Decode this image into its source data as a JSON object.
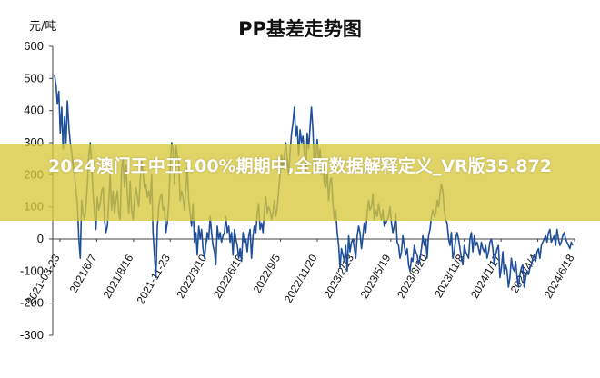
{
  "overlay": {
    "headline": "2024澳门王中王100%期期中,全面数据解释定义_VR版35.872"
  },
  "colors": {
    "line": "#1f4e9a",
    "banner": "#d8c83c",
    "axis": "#444444"
  },
  "chart_data": {
    "type": "line",
    "title": "PP基差走势图",
    "ylabel": "元/吨",
    "xlabel": "",
    "ylim": [
      -300,
      600
    ],
    "yticks": [
      600,
      500,
      400,
      300,
      200,
      100,
      0,
      -100,
      -200,
      -300
    ],
    "xticklabels": [
      "2021-03-23",
      "2021/6/7",
      "2021/8/16",
      "2021-11-23",
      "2022/3/10",
      "2022/6/10",
      "2022/9/5",
      "2022/11/20",
      "2023/2/13",
      "2023/5/19",
      "2023/8/20",
      "2023/11/8",
      "2024/1/17",
      "2024/4/4",
      "2024/6/18"
    ],
    "grid": false,
    "legend": "none",
    "series": [
      {
        "values": [
          510,
          480,
          420,
          460,
          330,
          410,
          280,
          380,
          300,
          430,
          350,
          300,
          270,
          230,
          200,
          150,
          110,
          0,
          -60,
          120,
          80,
          60,
          100,
          170,
          260,
          300,
          230,
          140,
          80,
          30,
          130,
          90,
          110,
          150,
          160,
          60,
          20,
          40,
          120,
          200,
          90,
          150,
          80,
          120,
          150,
          80,
          60,
          220,
          250,
          160,
          230,
          140,
          80,
          180,
          90,
          60,
          120,
          160,
          130,
          100,
          180,
          240,
          210,
          160,
          170,
          130,
          150,
          110,
          200,
          20,
          -50,
          -120,
          40,
          100,
          130,
          140,
          90,
          100,
          20,
          50,
          110,
          220,
          300,
          280,
          170,
          290,
          260,
          240,
          120,
          150,
          130,
          90,
          160,
          220,
          120,
          80,
          40,
          110,
          -10,
          20,
          -50,
          40,
          0,
          30,
          -30,
          -60,
          -20,
          20,
          0,
          70,
          20,
          -20,
          -40,
          -80,
          40,
          0,
          20,
          -10,
          10,
          20,
          70,
          20,
          40,
          -10,
          20,
          -50,
          30,
          0,
          -20,
          -60,
          -30,
          -70,
          20,
          -10,
          0,
          -40,
          10,
          30,
          -60,
          10,
          40,
          20,
          80,
          110,
          30,
          50,
          20,
          90,
          130,
          80,
          100,
          90,
          60,
          80,
          120,
          70,
          100,
          150,
          200,
          260,
          220,
          260,
          300,
          250,
          200,
          270,
          330,
          360,
          410,
          320,
          350,
          260,
          340,
          300,
          320,
          270,
          210,
          330,
          280,
          350,
          410,
          340,
          220,
          250,
          310,
          250,
          280,
          200,
          240,
          170,
          160,
          210,
          120,
          180,
          190,
          110,
          60,
          90,
          20,
          -20,
          -90,
          -30,
          -50,
          -70,
          -20,
          -100,
          10,
          -40,
          -10,
          0,
          -30,
          -60,
          10,
          40,
          20,
          -30,
          10,
          50,
          20,
          80,
          120,
          90,
          100,
          140,
          60,
          90,
          70,
          110,
          80,
          60,
          90,
          40,
          50,
          60,
          70,
          100,
          50,
          20,
          40,
          80,
          -10,
          -20,
          -60,
          -40,
          10,
          -20,
          -50,
          -30,
          -80,
          -100,
          -60,
          -70,
          -20,
          -40,
          -50,
          -80,
          -60,
          -30,
          10,
          -20,
          0,
          -60,
          10,
          30,
          70,
          90,
          70,
          80,
          120,
          100,
          140,
          170,
          150,
          90,
          60,
          50,
          0,
          -20,
          20,
          -60,
          -40,
          0,
          20,
          0,
          -30,
          -60,
          -80,
          -20,
          -40,
          -50,
          -60,
          0,
          20,
          -40,
          10,
          -20,
          -10,
          -30,
          -50,
          -10,
          -30,
          -40,
          -20,
          -60,
          -40,
          -10,
          0,
          -30,
          -80,
          -50,
          -30,
          -20,
          -120,
          -90,
          -40,
          -110,
          -80,
          -100,
          -150,
          -120,
          -60,
          -90,
          -100,
          -70,
          -120,
          -150,
          -110,
          -90,
          -80,
          -150,
          -120,
          -100,
          -110,
          -90,
          -80,
          -60,
          -50,
          -70,
          -40,
          -30,
          -60,
          -20,
          -10,
          0,
          10,
          -10,
          20,
          30,
          -10,
          0,
          10,
          -20,
          30,
          0,
          -20,
          -10,
          10,
          20,
          0,
          -10,
          -20,
          -30,
          -10,
          -20
        ]
      }
    ]
  }
}
